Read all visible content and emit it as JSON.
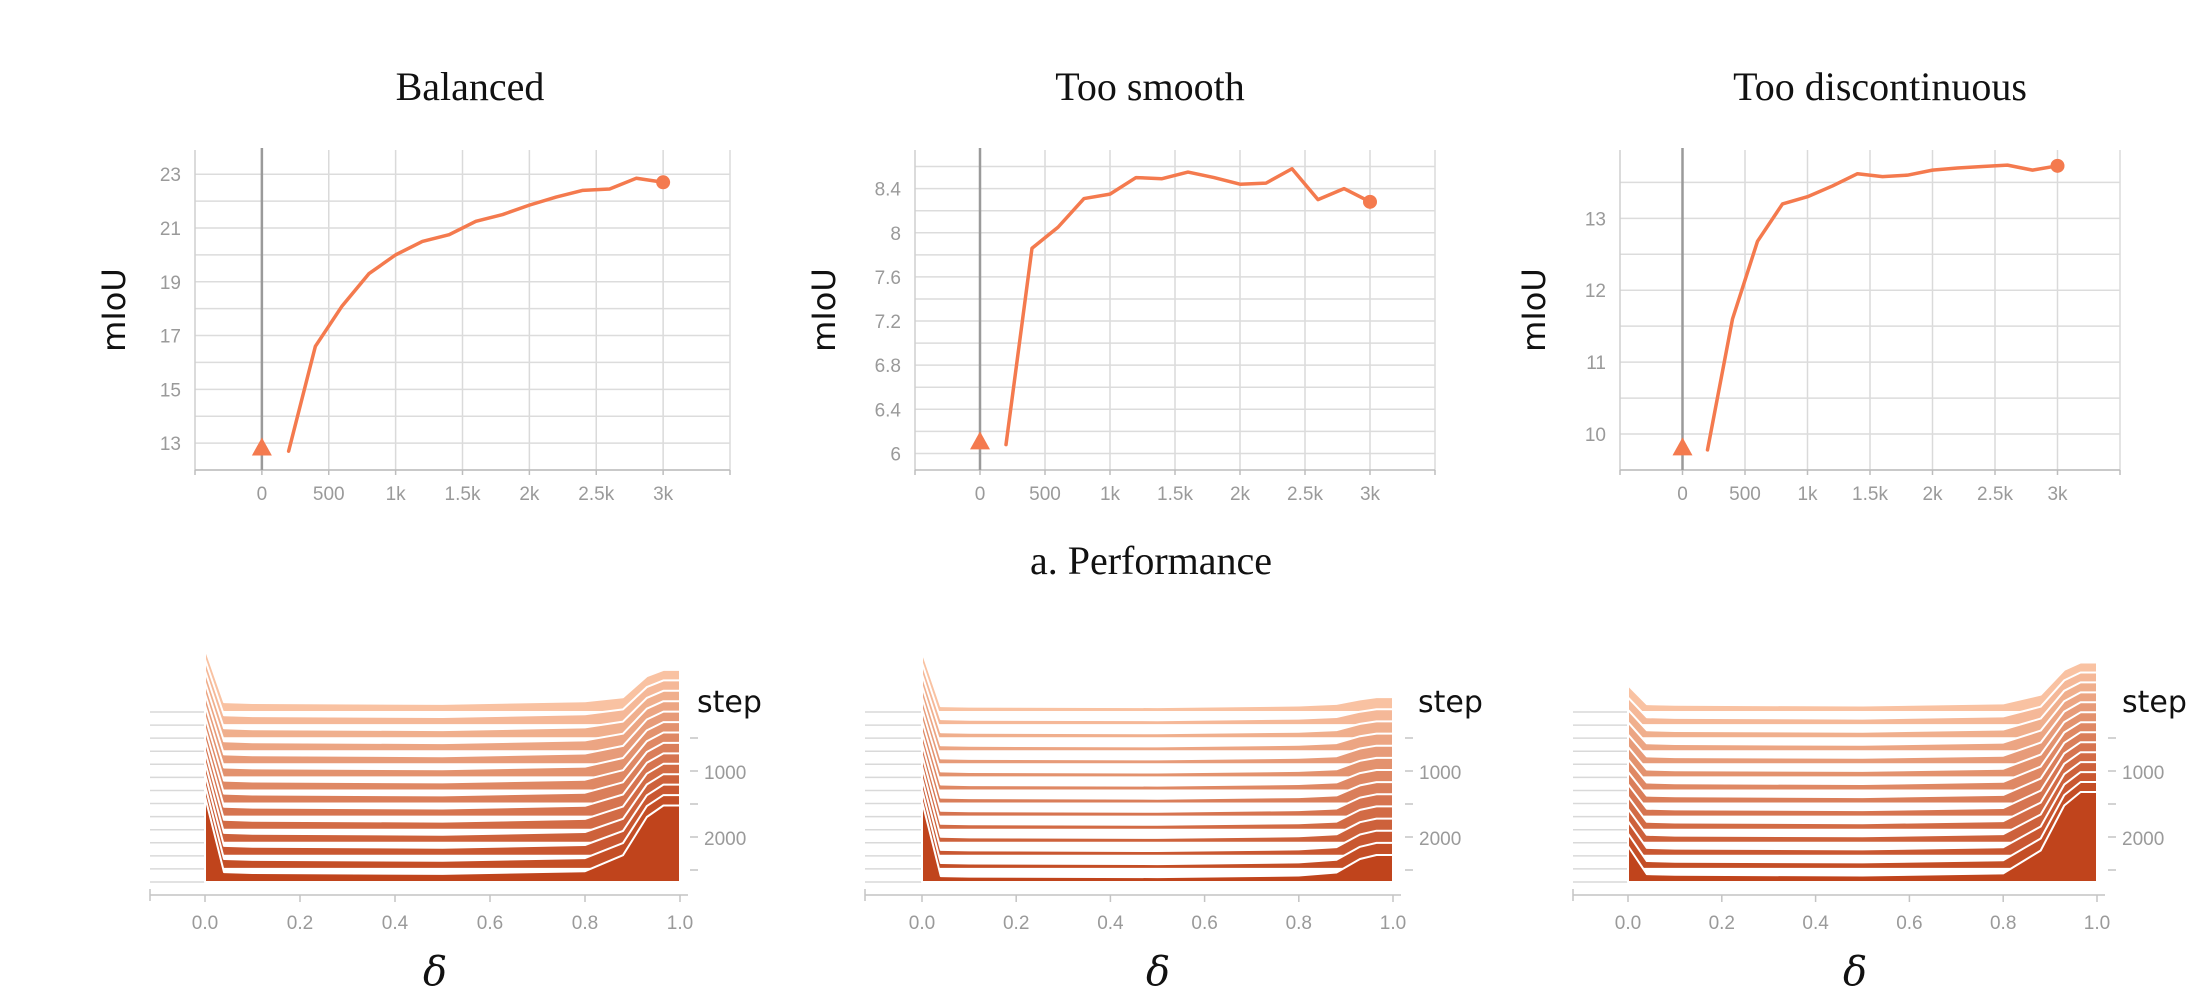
{
  "caption": "a. Performance",
  "chart_data": [
    {
      "type": "line",
      "title": "Balanced",
      "ylabel": "mIoU",
      "xlabel": "",
      "x_ticks": [
        0,
        500,
        1000,
        1500,
        2000,
        2500,
        3000
      ],
      "x_tick_labels": [
        "0",
        "500",
        "1k",
        "1.5k",
        "2k",
        "2.5k",
        "3k"
      ],
      "y_ticks": [
        13,
        15,
        17,
        19,
        21,
        23
      ],
      "xlim": [
        -500,
        3500
      ],
      "ylim": [
        12,
        23.9
      ],
      "grid": true,
      "series": [
        {
          "color": "#f47a4e",
          "x": [
            200,
            400,
            600,
            800,
            1000,
            1200,
            1400,
            1600,
            1800,
            2000,
            2200,
            2400,
            2600,
            2800,
            3000
          ],
          "values": [
            12.7,
            16.6,
            18.1,
            19.3,
            20.0,
            20.5,
            20.75,
            21.25,
            21.5,
            21.85,
            22.15,
            22.4,
            22.45,
            22.85,
            22.7
          ]
        }
      ],
      "start_marker": {
        "x": 0,
        "y": 12.8
      },
      "end_marker": {
        "x": 3000,
        "y": 22.7
      }
    },
    {
      "type": "line",
      "title": "Too smooth",
      "ylabel": "mIoU",
      "xlabel": "",
      "x_ticks": [
        0,
        500,
        1000,
        1500,
        2000,
        2500,
        3000
      ],
      "x_tick_labels": [
        "0",
        "500",
        "1k",
        "1.5k",
        "2k",
        "2.5k",
        "3k"
      ],
      "y_ticks": [
        6,
        6.4,
        6.8,
        7.2,
        7.6,
        8,
        8.4
      ],
      "y_tick_labels": [
        "6",
        "6.4",
        "6.8",
        "7.2",
        "7.6",
        "8",
        "8.4"
      ],
      "xlim": [
        -500,
        3500
      ],
      "ylim": [
        5.85,
        8.75
      ],
      "grid": true,
      "series": [
        {
          "color": "#f47a4e",
          "x": [
            200,
            400,
            600,
            800,
            1000,
            1200,
            1400,
            1600,
            1800,
            2000,
            2200,
            2400,
            2600,
            2800,
            3000
          ],
          "values": [
            6.08,
            7.86,
            8.05,
            8.31,
            8.35,
            8.5,
            8.49,
            8.55,
            8.5,
            8.44,
            8.45,
            8.58,
            8.3,
            8.4,
            8.28
          ]
        }
      ],
      "start_marker": {
        "x": 0,
        "y": 6.1
      },
      "end_marker": {
        "x": 3000,
        "y": 8.28
      }
    },
    {
      "type": "line",
      "title": "Too discontinuous",
      "ylabel": "mIoU",
      "xlabel": "",
      "x_ticks": [
        0,
        500,
        1000,
        1500,
        2000,
        2500,
        3000
      ],
      "x_tick_labels": [
        "0",
        "500",
        "1k",
        "1.5k",
        "2k",
        "2.5k",
        "3k"
      ],
      "y_ticks": [
        10,
        11,
        12,
        13
      ],
      "xlim": [
        -500,
        3500
      ],
      "ylim": [
        9.5,
        13.95
      ],
      "grid": true,
      "series": [
        {
          "color": "#f47a4e",
          "x": [
            200,
            400,
            600,
            800,
            1000,
            1200,
            1400,
            1600,
            1800,
            2000,
            2200,
            2400,
            2600,
            2800,
            3000
          ],
          "values": [
            9.78,
            11.6,
            12.68,
            13.2,
            13.3,
            13.45,
            13.62,
            13.58,
            13.6,
            13.67,
            13.7,
            13.72,
            13.74,
            13.67,
            13.73
          ]
        }
      ],
      "start_marker": {
        "x": 0,
        "y": 9.8
      },
      "end_marker": {
        "x": 3000,
        "y": 13.73
      }
    },
    {
      "type": "area",
      "subtype": "stacked-histogram",
      "title": "",
      "xlabel": "δ",
      "step_axis_label": "step",
      "x_ticks": [
        "0.0",
        "0.2",
        "0.4",
        "0.6",
        "0.8",
        "1.0"
      ],
      "step_ticks": [
        "1000",
        "2000"
      ],
      "xlim": [
        0,
        1
      ],
      "layers": 14,
      "color_light": "#f9c2a2",
      "color_dark": "#c0441c",
      "profile": {
        "left_peak": 0.95,
        "flat": 0.1,
        "right_peak": 0.85
      }
    },
    {
      "type": "area",
      "subtype": "stacked-histogram",
      "title": "",
      "xlabel": "δ",
      "step_axis_label": "step",
      "x_ticks": [
        "0.0",
        "0.2",
        "0.4",
        "0.6",
        "0.8",
        "1.0"
      ],
      "step_ticks": [
        "1000",
        "2000"
      ],
      "xlim": [
        0,
        1
      ],
      "layers": 14,
      "color_light": "#f9c2a2",
      "color_dark": "#c0441c",
      "profile": {
        "left_peak": 0.9,
        "flat": 0.06,
        "right_peak": 0.3
      }
    },
    {
      "type": "area",
      "subtype": "stacked-histogram",
      "title": "",
      "xlabel": "δ",
      "step_axis_label": "step",
      "x_ticks": [
        "0.0",
        "0.2",
        "0.4",
        "0.6",
        "0.8",
        "1.0"
      ],
      "step_ticks": [
        "1000",
        "2000"
      ],
      "xlim": [
        0,
        1
      ],
      "layers": 14,
      "color_light": "#f9c2a2",
      "color_dark": "#c0441c",
      "profile": {
        "left_peak": 0.4,
        "flat": 0.08,
        "right_peak": 1.0
      }
    }
  ]
}
